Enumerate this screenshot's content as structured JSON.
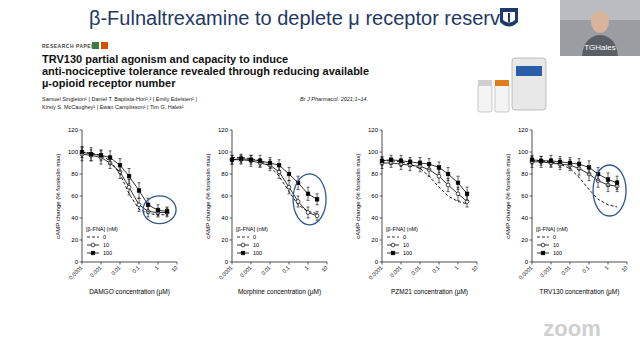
{
  "slide": {
    "title": "β-Fulnaltrexamine to deplete μ receptor reserve",
    "paper": {
      "label": "RESEARCH PAPER",
      "title_lines": [
        "TRV130 partial agonism and capacity to induce",
        "anti-nociceptive tolerance revealed through reducing available",
        "µ-opioid receptor number"
      ],
      "author_lines": [
        "Samuel Singleton¹ | Daniel T. Baptista-Hon¹,² | Emily Edelsten¹ |",
        "Kirsty S. McCaughey¹ | Ewan Camplisson¹ | Tim G. Hales¹"
      ],
      "journal": "Br J Pharmacol. 2021;1–14."
    },
    "presenter": "TGHales",
    "app": "zoom"
  },
  "chart_data": [
    {
      "type": "line",
      "log": "x",
      "legend": "lower-left",
      "legend_title": "[β-FNA] (nM)",
      "x_label": "DAMGO concentration (µM)",
      "y_label": "cAMP change (% forskolin max)",
      "x": [
        0.0001,
        0.0003,
        0.001,
        0.003,
        0.01,
        0.03,
        0.1,
        0.3,
        1,
        3
      ],
      "xlim": [
        0.0001,
        10
      ],
      "xticks": [
        0.0001,
        0.001,
        0.01,
        0.1,
        1,
        10
      ],
      "ylim": [
        0,
        120
      ],
      "yticks": [
        0,
        20,
        40,
        60,
        80,
        100,
        120
      ],
      "series": [
        {
          "name": "0",
          "color": "#000000",
          "marker": "none",
          "line_style": "dashed",
          "values": [
            100,
            99,
            97,
            92,
            80,
            62,
            48,
            44,
            43,
            43
          ]
        },
        {
          "name": "10",
          "color": "#000000",
          "marker": "circle-open",
          "line_style": "solid",
          "values": [
            98,
            97,
            95,
            90,
            82,
            68,
            52,
            46,
            45,
            45
          ],
          "errors": [
            6,
            5,
            6,
            5,
            6,
            7,
            6,
            5,
            4,
            4
          ]
        },
        {
          "name": "100",
          "color": "#000000",
          "marker": "square-filled",
          "line_style": "solid",
          "values": [
            100,
            98,
            97,
            95,
            88,
            78,
            65,
            52,
            47,
            46
          ],
          "errors": [
            5,
            6,
            5,
            6,
            6,
            7,
            7,
            6,
            5,
            4
          ]
        }
      ]
    },
    {
      "type": "line",
      "log": "x",
      "legend": "lower-left",
      "legend_title": "[β-FNA] (nM)",
      "x_label": "Morphine concentration (µM)",
      "y_label": "cAMP change (% forskolin max)",
      "x": [
        0.0001,
        0.0003,
        0.001,
        0.003,
        0.01,
        0.03,
        0.1,
        0.3,
        1,
        3
      ],
      "xlim": [
        0.0001,
        10
      ],
      "xticks": [
        0.0001,
        0.001,
        0.01,
        0.1,
        1,
        10
      ],
      "ylim": [
        0,
        120
      ],
      "yticks": [
        0,
        20,
        40,
        60,
        80,
        100,
        120
      ],
      "series": [
        {
          "name": "0",
          "color": "#000000",
          "marker": "none",
          "line_style": "dashed",
          "values": [
            95,
            95,
            94,
            92,
            87,
            78,
            64,
            52,
            46,
            44
          ]
        },
        {
          "name": "10",
          "color": "#000000",
          "marker": "circle-open",
          "line_style": "solid",
          "values": [
            93,
            93,
            92,
            90,
            88,
            82,
            68,
            55,
            45,
            42
          ],
          "errors": [
            4,
            4,
            5,
            4,
            5,
            6,
            6,
            5,
            5,
            4
          ]
        },
        {
          "name": "100",
          "color": "#000000",
          "marker": "square-filled",
          "line_style": "solid",
          "values": [
            93,
            94,
            93,
            92,
            90,
            88,
            80,
            72,
            62,
            57
          ],
          "errors": [
            4,
            4,
            4,
            5,
            5,
            5,
            6,
            6,
            6,
            5
          ]
        }
      ]
    },
    {
      "type": "line",
      "log": "x",
      "legend": "lower-left",
      "legend_title": "[β-FNA] (nM)",
      "x_label": "PZM21 concentration (µM)",
      "y_label": "cAMP change (% forskolin max)",
      "x": [
        0.0001,
        0.0003,
        0.001,
        0.003,
        0.01,
        0.03,
        0.1,
        0.3,
        1,
        3
      ],
      "xlim": [
        0.0001,
        10
      ],
      "xticks": [
        0.0001,
        0.001,
        0.01,
        0.1,
        1,
        10
      ],
      "ylim": [
        0,
        120
      ],
      "yticks": [
        0,
        20,
        40,
        60,
        80,
        100,
        120
      ],
      "series": [
        {
          "name": "0",
          "color": "#000000",
          "marker": "none",
          "line_style": "dashed",
          "values": [
            92,
            92,
            91,
            89,
            85,
            78,
            68,
            60,
            55,
            53
          ]
        },
        {
          "name": "10",
          "color": "#000000",
          "marker": "circle-open",
          "line_style": "solid",
          "values": [
            90,
            90,
            89,
            88,
            87,
            84,
            78,
            70,
            62,
            55
          ],
          "errors": [
            5,
            4,
            5,
            5,
            5,
            6,
            6,
            6,
            6,
            5
          ]
        },
        {
          "name": "100",
          "color": "#000000",
          "marker": "square-filled",
          "line_style": "solid",
          "values": [
            92,
            93,
            92,
            91,
            90,
            89,
            86,
            80,
            72,
            62
          ],
          "errors": [
            4,
            4,
            5,
            4,
            5,
            5,
            5,
            6,
            6,
            6
          ]
        }
      ]
    },
    {
      "type": "line",
      "log": "x",
      "legend": "lower-left",
      "legend_title": "[β-FNA] (nM)",
      "x_label": "TRV130 concentration (µM)",
      "y_label": "cAMP change (% forskolin max)",
      "x": [
        0.0001,
        0.0003,
        0.001,
        0.003,
        0.01,
        0.03,
        0.1,
        0.3,
        1,
        3
      ],
      "xlim": [
        0.0001,
        10
      ],
      "xticks": [
        0.0001,
        0.001,
        0.01,
        0.1,
        1,
        10
      ],
      "ylim": [
        0,
        120
      ],
      "yticks": [
        0,
        20,
        40,
        60,
        80,
        100,
        120
      ],
      "series": [
        {
          "name": "0",
          "color": "#000000",
          "marker": "none",
          "line_style": "dashed",
          "values": [
            92,
            92,
            91,
            89,
            85,
            77,
            66,
            57,
            52,
            50
          ]
        },
        {
          "name": "10",
          "color": "#000000",
          "marker": "circle-open",
          "line_style": "solid",
          "values": [
            91,
            91,
            90,
            89,
            88,
            85,
            80,
            74,
            70,
            69
          ],
          "errors": [
            5,
            5,
            4,
            5,
            5,
            6,
            6,
            6,
            6,
            5
          ]
        },
        {
          "name": "100",
          "color": "#000000",
          "marker": "square-filled",
          "line_style": "solid",
          "values": [
            93,
            92,
            92,
            91,
            90,
            89,
            86,
            80,
            75,
            72
          ],
          "errors": [
            4,
            4,
            5,
            5,
            5,
            5,
            6,
            6,
            6,
            6
          ]
        }
      ]
    }
  ]
}
